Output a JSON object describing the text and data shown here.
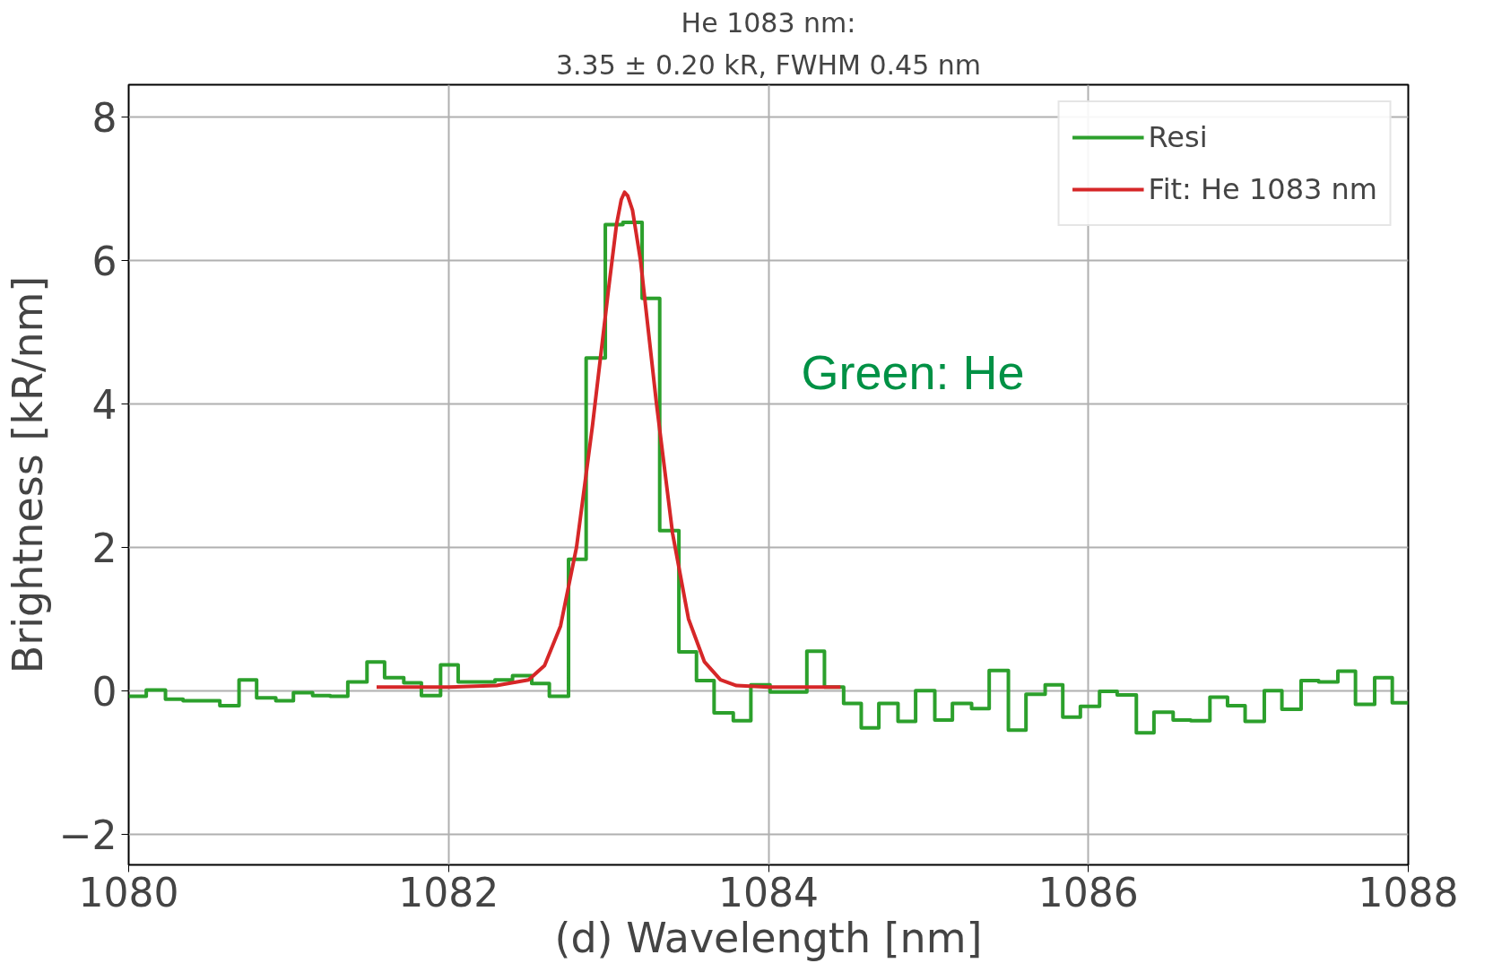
{
  "chart_data": {
    "type": "step",
    "title": "He 1083 nm:",
    "subtitle": "3.35 ± 0.20 kR, FWHM 0.45 nm",
    "xlabel": "(d) Wavelength [nm]",
    "ylabel": "Brightness [kR/nm]",
    "xlim": [
      1080,
      1088
    ],
    "xticks": [
      1080,
      1082,
      1084,
      1086,
      1088
    ],
    "ylim": [
      -2.43,
      8.45
    ],
    "yticks": [
      {
        "value": -2,
        "label": "−2"
      },
      0,
      2,
      4,
      6,
      8
    ],
    "grid": true,
    "legend": "top right",
    "annotations": [
      "Green: He"
    ],
    "series": [
      {
        "name": "Resi",
        "color": "#2ca02c",
        "x": [
          1080.0,
          1080.11,
          1080.23,
          1080.34,
          1080.46,
          1080.57,
          1080.69,
          1080.8,
          1080.92,
          1081.03,
          1081.15,
          1081.26,
          1081.37,
          1081.49,
          1081.6,
          1081.72,
          1081.83,
          1081.95,
          1082.06,
          1082.18,
          1082.29,
          1082.4,
          1082.52,
          1082.63,
          1082.75,
          1082.86,
          1082.98,
          1083.09,
          1083.21,
          1083.32,
          1083.44,
          1083.55,
          1083.66,
          1083.78,
          1083.89,
          1084.01,
          1084.12,
          1084.24,
          1084.35,
          1084.47,
          1084.58,
          1084.69,
          1084.81,
          1084.92,
          1085.04,
          1085.15,
          1085.27,
          1085.38,
          1085.5,
          1085.61,
          1085.73,
          1085.84,
          1085.95,
          1086.07,
          1086.18,
          1086.3,
          1086.41,
          1086.53,
          1086.64,
          1086.76,
          1086.87,
          1086.98,
          1087.1,
          1087.21,
          1087.33,
          1087.44,
          1087.56,
          1087.67,
          1087.79,
          1087.9,
          1088.0
        ],
        "values": [
          -0.08,
          0.01,
          -0.12,
          -0.14,
          -0.14,
          -0.21,
          0.15,
          -0.1,
          -0.14,
          -0.03,
          -0.07,
          -0.08,
          0.12,
          0.4,
          0.18,
          0.11,
          -0.07,
          0.36,
          0.12,
          0.12,
          0.15,
          0.21,
          0.1,
          -0.08,
          1.83,
          4.64,
          6.5,
          6.53,
          5.47,
          2.23,
          0.54,
          0.14,
          -0.31,
          -0.42,
          0.08,
          -0.02,
          -0.02,
          0.55,
          0.05,
          -0.18,
          -0.52,
          -0.18,
          -0.43,
          0.0,
          -0.41,
          -0.18,
          -0.25,
          0.28,
          -0.55,
          -0.05,
          0.08,
          -0.37,
          -0.22,
          -0.01,
          -0.06,
          -0.59,
          -0.3,
          -0.41,
          -0.42,
          -0.09,
          -0.21,
          -0.43,
          0.0,
          -0.26,
          0.14,
          0.12,
          0.27,
          -0.19,
          0.18,
          -0.17,
          -0.17
        ]
      },
      {
        "name": "Fit: He 1083 nm",
        "type": "line",
        "color": "#d62728",
        "x": [
          1081.55,
          1082.0,
          1082.3,
          1082.5,
          1082.6,
          1082.7,
          1082.8,
          1082.9,
          1083.0,
          1083.05,
          1083.08,
          1083.1,
          1083.12,
          1083.15,
          1083.2,
          1083.3,
          1083.4,
          1083.5,
          1083.6,
          1083.7,
          1083.8,
          1084.0,
          1084.45
        ],
        "values": [
          0.05,
          0.05,
          0.07,
          0.15,
          0.35,
          0.9,
          2.0,
          3.7,
          5.6,
          6.5,
          6.85,
          6.95,
          6.9,
          6.7,
          6.0,
          4.0,
          2.2,
          1.0,
          0.4,
          0.15,
          0.07,
          0.05,
          0.05
        ]
      }
    ]
  }
}
